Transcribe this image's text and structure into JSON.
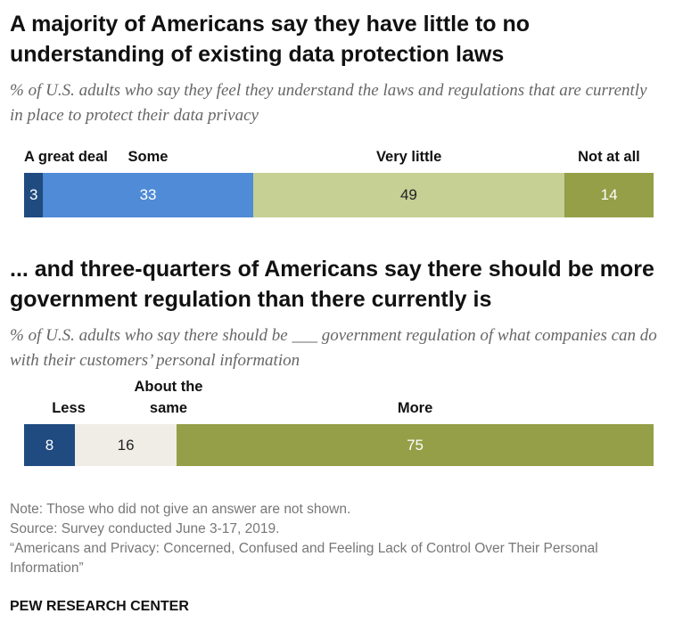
{
  "chart_data": [
    {
      "type": "stacked_bar",
      "title": "A majority of Americans say they have little to no understanding of existing data protection laws",
      "subtitle": "% of U.S. adults who say they feel they understand the laws and regulations that are currently in place to protect their data privacy",
      "categories": [
        "A great deal",
        "Some",
        "Very little",
        "Not at all"
      ],
      "values": [
        3,
        33,
        49,
        14
      ],
      "colors": [
        "#1f4b80",
        "#4f8bd6",
        "#c6cf94",
        "#949f48"
      ]
    },
    {
      "type": "stacked_bar",
      "title": "... and three-quarters of Americans say there should be more government regulation than there currently is",
      "subtitle": "% of U.S. adults who say there should be ___ government regulation of what companies can do with their customers’ personal information",
      "categories": [
        "Less",
        "About the same",
        "More"
      ],
      "values": [
        8,
        16,
        75
      ],
      "colors": [
        "#1f4b80",
        "#efede6",
        "#949f48"
      ]
    }
  ],
  "notes": [
    "Note: Those who did not give an answer are not shown.",
    "Source: Survey conducted June 3-17, 2019.",
    "“Americans and Privacy: Concerned, Confused and Feeling Lack of Control Over Their Personal Information”"
  ],
  "brand": "PEW RESEARCH CENTER"
}
